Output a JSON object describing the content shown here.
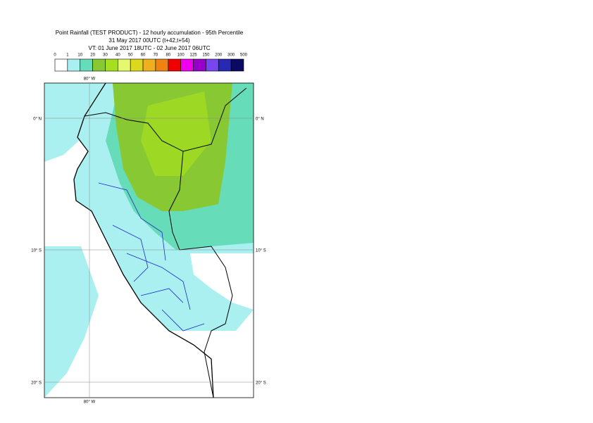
{
  "header": {
    "title": "Point Rainfall (TEST PRODUCT) - 12 hourly accumulation - 95th Percentile",
    "base_time": "31 May 2017 00UTC (t+42,t+54)",
    "valid_time": "VT: 01 June 2017 18UTC - 02 June 2017 06UTC"
  },
  "legend": {
    "thresholds": [
      0,
      1,
      10,
      20,
      30,
      40,
      50,
      60,
      70,
      80,
      100,
      125,
      150,
      200,
      300,
      500
    ],
    "colors": [
      "#ffffff",
      "#aaf0f0",
      "#66ddb8",
      "#88c832",
      "#a6df1e",
      "#e6f86e",
      "#dcd81e",
      "#f0b01e",
      "#f08214",
      "#f00000",
      "#ee00ee",
      "#9600c8",
      "#7846ee",
      "#2828b4",
      "#0a0a64"
    ]
  },
  "map": {
    "lon_labels": [
      "80° W",
      "80° W"
    ],
    "lat_labels": [
      "0° N",
      "0° N",
      "10° S",
      "10° S",
      "20° S",
      "20° S"
    ]
  }
}
